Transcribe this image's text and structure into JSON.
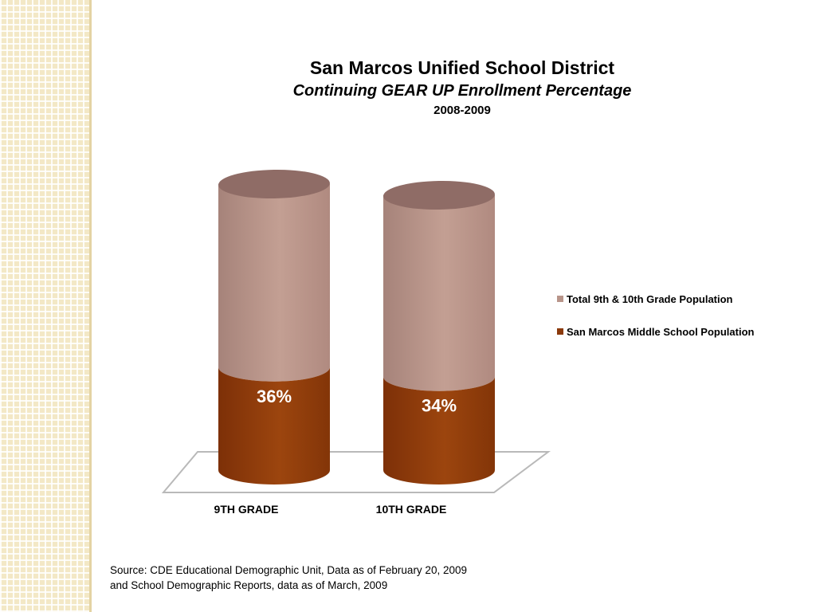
{
  "chart_data": {
    "type": "bar",
    "title": "San Marcos Unified School District",
    "subtitle": "Continuing GEAR UP Enrollment Percentage",
    "subtitle2": "2008-2009",
    "categories": [
      "9TH GRADE",
      "10TH GRADE"
    ],
    "series": [
      {
        "name": "Total 9th & 10th Grade Population",
        "color": "#b8958a",
        "values": [
          100,
          100
        ]
      },
      {
        "name": "San Marcos Middle School Population",
        "color": "#8b3a0c",
        "values": [
          36,
          34
        ]
      }
    ],
    "data_labels": [
      "36%",
      "34%"
    ],
    "stacked": true,
    "style": "3d-cylinder",
    "legend": "right"
  },
  "source": {
    "line1": "Source: CDE Educational Demographic Unit, Data as of February 20, 2009",
    "line2": "and School Demographic Reports, data as of March, 2009"
  }
}
